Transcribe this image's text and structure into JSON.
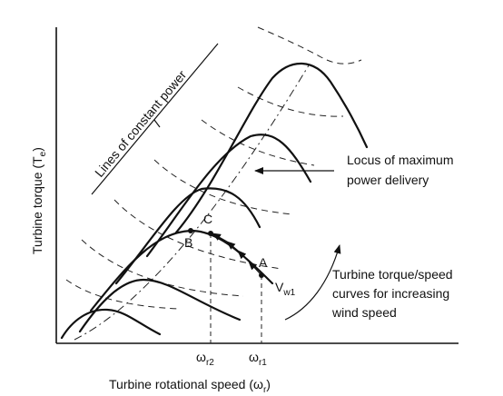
{
  "labels": {
    "y_axis": "Turbine torque (T",
    "y_axis_sub": "e",
    "y_axis_end": ")",
    "x_axis": "Turbine rotational speed (ω",
    "x_axis_sub": "r",
    "x_axis_end": ")",
    "constant_power": "Lines of constant power",
    "locus_line1": "Locus of maximum",
    "locus_line2": "power delivery",
    "curves_line1": "Turbine torque/speed",
    "curves_line2": "curves for increasing",
    "curves_line3": "wind speed"
  },
  "points": {
    "A": "A",
    "B": "B",
    "C": "C",
    "wind": "V",
    "wind_sub": "w1"
  },
  "ticks": {
    "r2": "ω",
    "r2_sub": "r2",
    "r1": "ω",
    "r1_sub": "r1"
  }
}
